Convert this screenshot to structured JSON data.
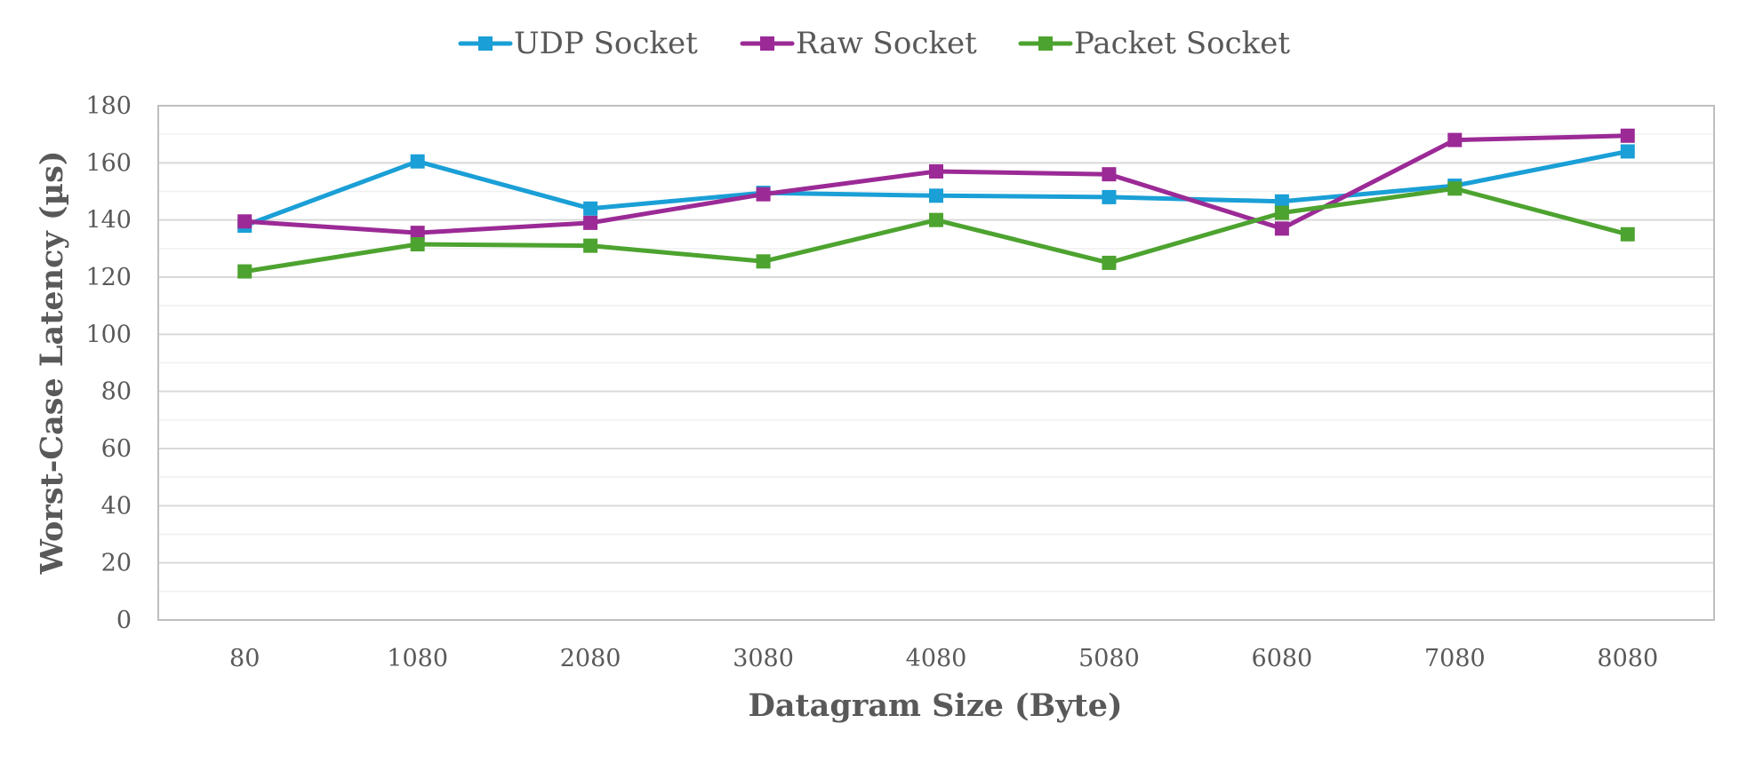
{
  "chart_data": {
    "type": "line",
    "xlabel": "Datagram Size (Byte)",
    "ylabel": "Worst-Case Latency (µs)",
    "categories": [
      "80",
      "1080",
      "2080",
      "3080",
      "4080",
      "5080",
      "6080",
      "7080",
      "8080"
    ],
    "ylim": [
      0,
      180
    ],
    "yticks": [
      0,
      20,
      40,
      60,
      80,
      100,
      120,
      140,
      160,
      180
    ],
    "grid": true,
    "legend_position": "top",
    "series": [
      {
        "name": "UDP Socket",
        "color": "#1a9fd6",
        "marker": "square",
        "values": [
          138,
          160.5,
          144,
          149.5,
          148.5,
          148,
          146.5,
          152,
          164
        ]
      },
      {
        "name": "Raw Socket",
        "color": "#9b2a96",
        "marker": "square",
        "values": [
          139.5,
          135.5,
          139,
          149,
          157,
          156,
          137,
          168,
          169.5
        ]
      },
      {
        "name": "Packet Socket",
        "color": "#4da32f",
        "marker": "square",
        "values": [
          122,
          131.5,
          131,
          125.5,
          140,
          125,
          142.5,
          151,
          135
        ]
      }
    ]
  }
}
